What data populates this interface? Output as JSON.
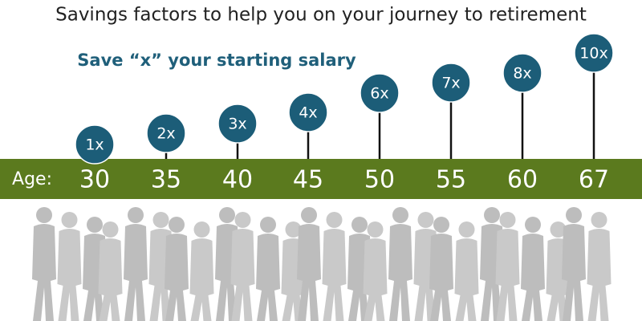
{
  "title": "Savings factors to help you on your journey to retirement",
  "subtitle": "Save “x” your starting salary",
  "age_label": "Age:",
  "milestones": [
    {
      "age": 30,
      "factor": "1x"
    },
    {
      "age": 35,
      "factor": "2x"
    },
    {
      "age": 40,
      "factor": "3x"
    },
    {
      "age": 45,
      "factor": "4x"
    },
    {
      "age": 50,
      "factor": "6x"
    },
    {
      "age": 55,
      "factor": "7x"
    },
    {
      "age": 60,
      "factor": "8x"
    },
    {
      "age": 67,
      "factor": "10x"
    }
  ]
}
